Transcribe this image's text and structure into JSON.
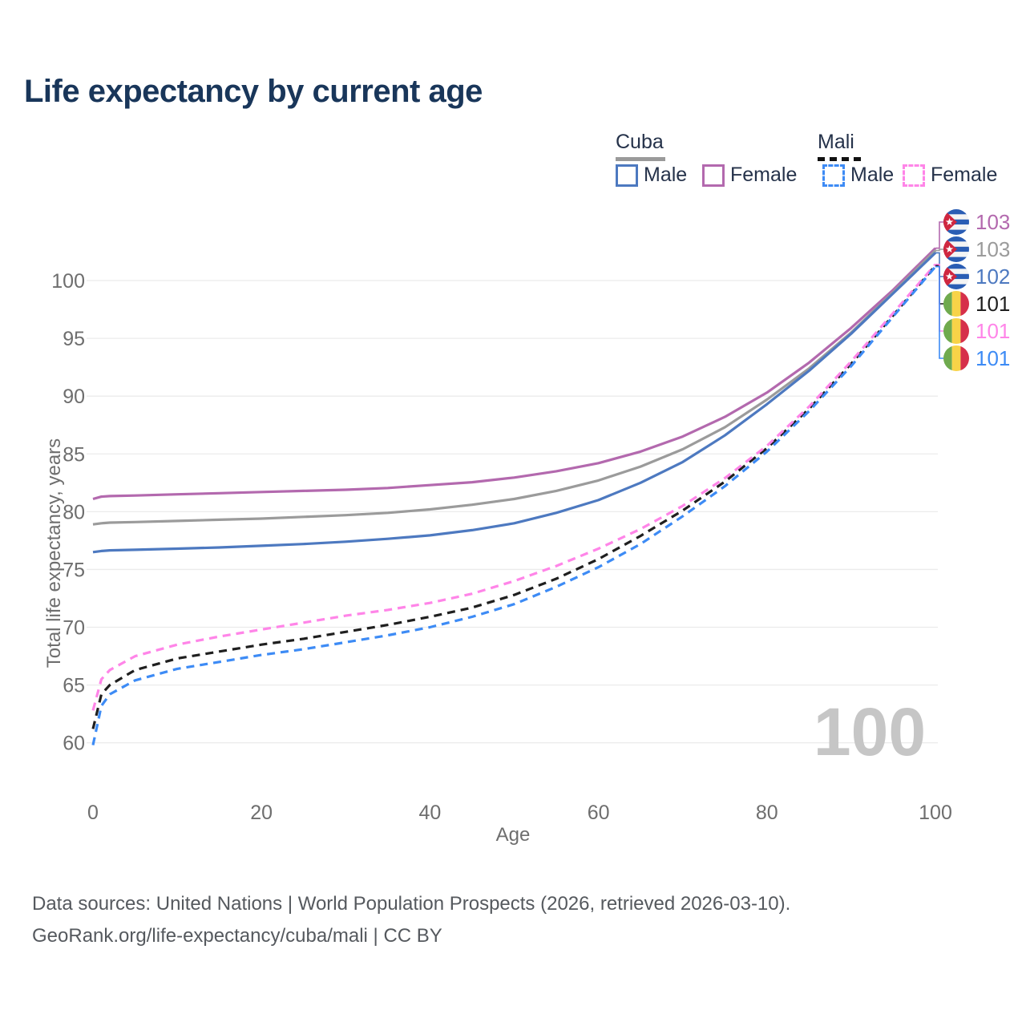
{
  "title": "Life expectancy by current age",
  "legend": {
    "cuba": {
      "title": "Cuba",
      "male": "Male",
      "female": "Female"
    },
    "mali": {
      "title": "Mali",
      "male": "Male",
      "female": "Female"
    }
  },
  "footer": {
    "line1": "Data sources: United Nations | World Population Prospects (2026, retrieved 2026-03-10).",
    "line2": "GeoRank.org/life-expectancy/cuba/mali | CC BY"
  },
  "colors": {
    "title_text": "#19365a",
    "legend_text": "#25324a",
    "axis_text": "#6e6e6e",
    "gridline": "#ebebeb",
    "watermark": "#c6c6c6",
    "footer_text": "#55595e",
    "cuba_female": "#b369ae",
    "cuba_average": "#9b9b9b",
    "cuba_male": "#4d79c0",
    "mali_average": "#1f1f1f",
    "mali_female": "#ff85e8",
    "mali_male": "#3d8bf5"
  },
  "chart_data": {
    "type": "line",
    "title": "Life expectancy by current age",
    "xlabel": "Age",
    "ylabel": "Total life expectancy, years",
    "watermark": "100",
    "xticks": [
      0,
      20,
      40,
      60,
      80,
      100
    ],
    "yticks": [
      60,
      65,
      70,
      75,
      80,
      85,
      90,
      95,
      100
    ],
    "xlim": [
      0,
      100
    ],
    "ylim": [
      60,
      100
    ],
    "grid": "horizontal",
    "x": [
      0,
      1,
      2,
      5,
      10,
      15,
      20,
      25,
      30,
      35,
      40,
      45,
      50,
      55,
      60,
      65,
      70,
      75,
      80,
      85,
      90,
      95,
      100
    ],
    "series": [
      {
        "name": "Cuba Female",
        "country": "Cuba",
        "sex": "Female",
        "style": "solid",
        "color": "#b369ae",
        "end_label": "103",
        "flag": "cuba",
        "values": [
          81.1,
          81.3,
          81.35,
          81.4,
          81.5,
          81.6,
          81.7,
          81.8,
          81.9,
          82.05,
          82.3,
          82.55,
          82.95,
          83.5,
          84.2,
          85.2,
          86.5,
          88.2,
          90.3,
          92.9,
          95.9,
          99.2,
          102.8
        ]
      },
      {
        "name": "Cuba Both sexes",
        "country": "Cuba",
        "sex": "Both",
        "style": "solid",
        "color": "#9b9b9b",
        "end_label": "103",
        "flag": "cuba",
        "values": [
          78.9,
          79.0,
          79.05,
          79.1,
          79.2,
          79.3,
          79.4,
          79.55,
          79.7,
          79.9,
          80.2,
          80.6,
          81.1,
          81.8,
          82.7,
          83.9,
          85.4,
          87.3,
          89.7,
          92.4,
          95.5,
          99.0,
          102.6
        ]
      },
      {
        "name": "Cuba Male",
        "country": "Cuba",
        "sex": "Male",
        "style": "solid",
        "color": "#4d79c0",
        "end_label": "102",
        "flag": "cuba",
        "values": [
          76.5,
          76.6,
          76.65,
          76.7,
          76.8,
          76.9,
          77.05,
          77.2,
          77.4,
          77.65,
          77.95,
          78.4,
          79.0,
          79.9,
          81.0,
          82.5,
          84.3,
          86.6,
          89.3,
          92.2,
          95.4,
          98.9,
          102.4
        ]
      },
      {
        "name": "Mali Both sexes",
        "country": "Mali",
        "sex": "Both",
        "style": "dashed",
        "color": "#1f1f1f",
        "end_label": "101",
        "flag": "mali",
        "values": [
          61.2,
          64.2,
          65.0,
          66.3,
          67.3,
          67.9,
          68.5,
          69.0,
          69.6,
          70.2,
          70.9,
          71.7,
          72.8,
          74.2,
          75.9,
          77.9,
          80.1,
          82.6,
          85.5,
          88.9,
          92.8,
          97.0,
          101.3
        ]
      },
      {
        "name": "Mali Female",
        "country": "Mali",
        "sex": "Female",
        "style": "dashed",
        "color": "#ff85e8",
        "end_label": "101",
        "flag": "mali",
        "values": [
          62.8,
          65.5,
          66.3,
          67.5,
          68.5,
          69.2,
          69.8,
          70.4,
          71.0,
          71.5,
          72.1,
          72.9,
          74.0,
          75.3,
          76.8,
          78.5,
          80.5,
          82.9,
          85.7,
          89.1,
          93.0,
          97.2,
          101.4
        ]
      },
      {
        "name": "Mali Male",
        "country": "Mali",
        "sex": "Male",
        "style": "dashed",
        "color": "#3d8bf5",
        "end_label": "101",
        "flag": "mali",
        "values": [
          59.8,
          63.2,
          64.2,
          65.4,
          66.4,
          67.0,
          67.6,
          68.1,
          68.7,
          69.3,
          70.0,
          70.9,
          72.0,
          73.5,
          75.2,
          77.2,
          79.6,
          82.2,
          85.2,
          88.7,
          92.6,
          96.9,
          101.2
        ]
      }
    ]
  }
}
